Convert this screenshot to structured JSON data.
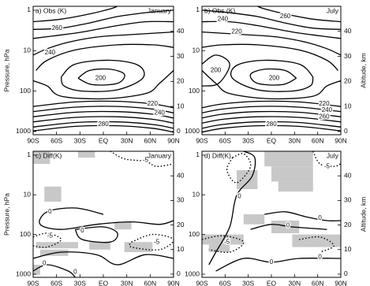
{
  "chart_data": [
    {
      "type": "contour",
      "title": "a) Obs (K)",
      "subtitle": "January",
      "ylabel": "Pressure, hPa",
      "xlim": [
        -90,
        90
      ],
      "xticks": [
        {
          "value": -90,
          "label": "90S"
        },
        {
          "value": -60,
          "label": "60S"
        },
        {
          "value": -30,
          "label": "30S"
        },
        {
          "value": 0,
          "label": "EQ"
        },
        {
          "value": 30,
          "label": "30N"
        },
        {
          "value": 60,
          "label": "60N"
        },
        {
          "value": 90,
          "label": "90N"
        }
      ],
      "log_y": true,
      "ylim": [
        1200,
        0.8
      ],
      "yticks": [
        1,
        10,
        100,
        1000
      ],
      "y2lim": [
        -1.3,
        50
      ],
      "y2ticks": [
        0,
        10,
        20,
        30,
        40
      ],
      "contour_labels": [
        260,
        240,
        200,
        220,
        240,
        280
      ]
    },
    {
      "type": "contour",
      "title": "b) Obs (K)",
      "subtitle": "July",
      "y2label": "Altitude, km",
      "xlim": [
        -90,
        90
      ],
      "xticks": [
        {
          "value": -90,
          "label": "90S"
        },
        {
          "value": -60,
          "label": "60S"
        },
        {
          "value": -30,
          "label": "30S"
        },
        {
          "value": 0,
          "label": "EQ"
        },
        {
          "value": 30,
          "label": "30N"
        },
        {
          "value": 60,
          "label": "60N"
        },
        {
          "value": 90,
          "label": "90N"
        }
      ],
      "log_y": true,
      "ylim": [
        1200,
        0.8
      ],
      "yticks": [
        1,
        10,
        100,
        1000
      ],
      "y2lim": [
        -1.3,
        50
      ],
      "y2ticks": [
        0,
        10,
        20,
        30,
        40
      ],
      "contour_labels": [
        240,
        220,
        260,
        200,
        200,
        220,
        240,
        260,
        280
      ]
    },
    {
      "type": "contour",
      "title": "c) Diff(K)",
      "subtitle": "January",
      "ylabel": "Pressure, hPa",
      "xlim": [
        -90,
        90
      ],
      "xticks": [
        {
          "value": -90,
          "label": "90S"
        },
        {
          "value": -60,
          "label": "60S"
        },
        {
          "value": -30,
          "label": "30S"
        },
        {
          "value": 0,
          "label": "EQ"
        },
        {
          "value": 30,
          "label": "30N"
        },
        {
          "value": 60,
          "label": "60N"
        },
        {
          "value": 90,
          "label": "90N"
        }
      ],
      "log_y": true,
      "ylim": [
        1200,
        0.8
      ],
      "yticks": [
        1,
        10,
        100,
        1000
      ],
      "y2lim": [
        -1.3,
        50
      ],
      "y2ticks": [
        0,
        10,
        20,
        30,
        40
      ],
      "contour_labels": [
        -5,
        0,
        0,
        -5,
        -5,
        0,
        0
      ]
    },
    {
      "type": "contour",
      "title": "d) Diff(K)",
      "subtitle": "July",
      "y2label": "Altitude, km",
      "xlim": [
        -90,
        90
      ],
      "xticks": [
        {
          "value": -90,
          "label": "90S"
        },
        {
          "value": -60,
          "label": "60S"
        },
        {
          "value": -30,
          "label": "30S"
        },
        {
          "value": 0,
          "label": "EQ"
        },
        {
          "value": 30,
          "label": "30N"
        },
        {
          "value": 60,
          "label": "60N"
        },
        {
          "value": 90,
          "label": "90N"
        }
      ],
      "log_y": true,
      "ylim": [
        1200,
        0.8
      ],
      "yticks": [
        1,
        10,
        100,
        1000
      ],
      "y2lim": [
        -1.3,
        50
      ],
      "y2ticks": [
        0,
        10,
        20,
        30,
        40
      ],
      "contour_labels": [
        -5,
        0,
        0,
        0,
        -5,
        0,
        0
      ]
    }
  ]
}
